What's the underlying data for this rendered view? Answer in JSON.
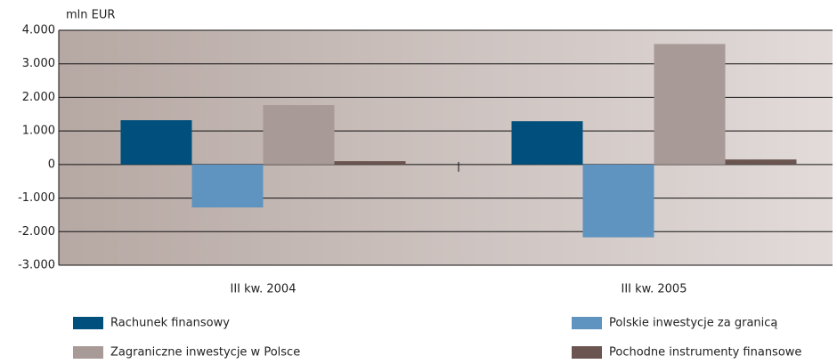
{
  "chart_data": {
    "type": "bar",
    "y_label": "mln EUR",
    "categories": [
      "III kw. 2004",
      "III kw. 2005"
    ],
    "series": [
      {
        "name": "Rachunek finansowy",
        "color": "#004f7c",
        "values": [
          1320,
          1290
        ]
      },
      {
        "name": "Polskie inwestycje za granicą",
        "color": "#5e94bf",
        "values": [
          -1280,
          -2170
        ]
      },
      {
        "name": "Zagraniczne inwestycje w Polsce",
        "color": "#a89a96",
        "values": [
          1770,
          3590
        ]
      },
      {
        "name": "Pochodne instrumenty finansowe",
        "color": "#6b5550",
        "values": [
          100,
          150
        ]
      }
    ],
    "ylim": [
      -3000,
      4000
    ],
    "yticks": [
      {
        "value": -3000,
        "label": "-3.000"
      },
      {
        "value": -2000,
        "label": "-2.000"
      },
      {
        "value": -1000,
        "label": "-1.000"
      },
      0,
      {
        "value": 1000,
        "label": "1.000"
      },
      {
        "value": 2000,
        "label": "2.000"
      },
      {
        "value": 3000,
        "label": "3.000"
      },
      {
        "value": 4000,
        "label": "4.000"
      }
    ],
    "grid": true
  }
}
